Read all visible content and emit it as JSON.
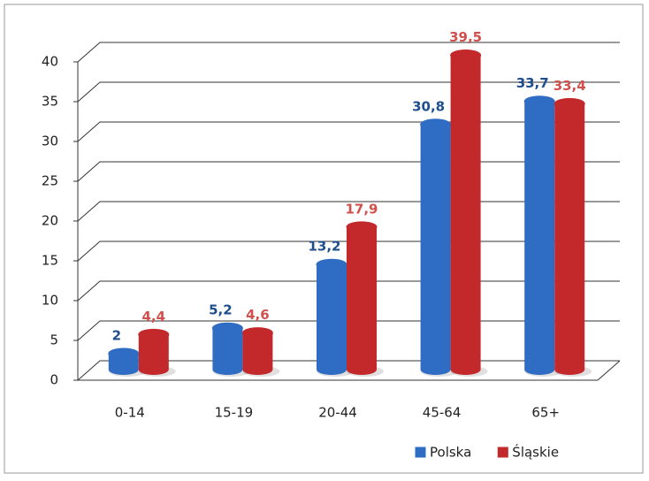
{
  "chart_data": {
    "type": "bar",
    "categories": [
      "0-14",
      "15-19",
      "20-44",
      "45-64",
      "65+"
    ],
    "series": [
      {
        "name": "Polska",
        "color": "#2f6cc4",
        "label_color": "#1f4e8c",
        "values": [
          2,
          5.2,
          13.2,
          30.8,
          33.7
        ],
        "value_labels": [
          "2",
          "5,2",
          "13,2",
          "30,8",
          "33,7"
        ]
      },
      {
        "name": "Śląskie",
        "color": "#c3282a",
        "label_color": "#d0504d",
        "values": [
          4.4,
          4.6,
          17.9,
          39.5,
          33.4
        ],
        "value_labels": [
          "4,4",
          "4,6",
          "17,9",
          "39,5",
          "33,4"
        ]
      }
    ],
    "ylim": [
      0,
      40
    ],
    "yticks": [
      0,
      5,
      10,
      15,
      20,
      25,
      30,
      35,
      40
    ],
    "grid": true,
    "legend": "bottom-right"
  }
}
